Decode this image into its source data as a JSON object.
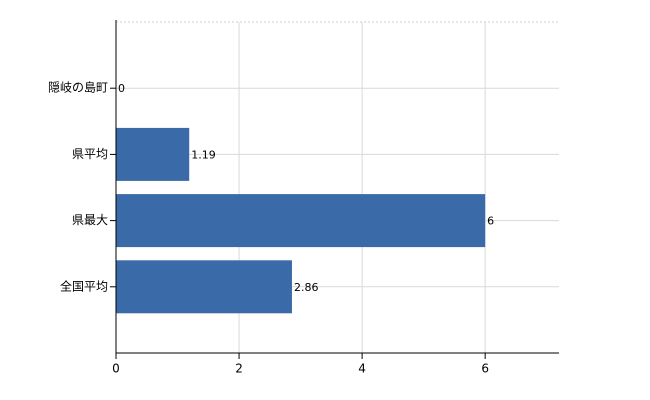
{
  "chart_data": {
    "type": "hbar",
    "categories": [
      "隠岐の島町",
      "県平均",
      "県最大",
      "全国平均"
    ],
    "values": [
      0,
      1.19,
      6,
      2.86
    ],
    "color": "#3a6ba8",
    "xlim": [
      0,
      7.2
    ],
    "xticks": [
      0,
      2,
      4,
      6
    ],
    "grid": true
  }
}
